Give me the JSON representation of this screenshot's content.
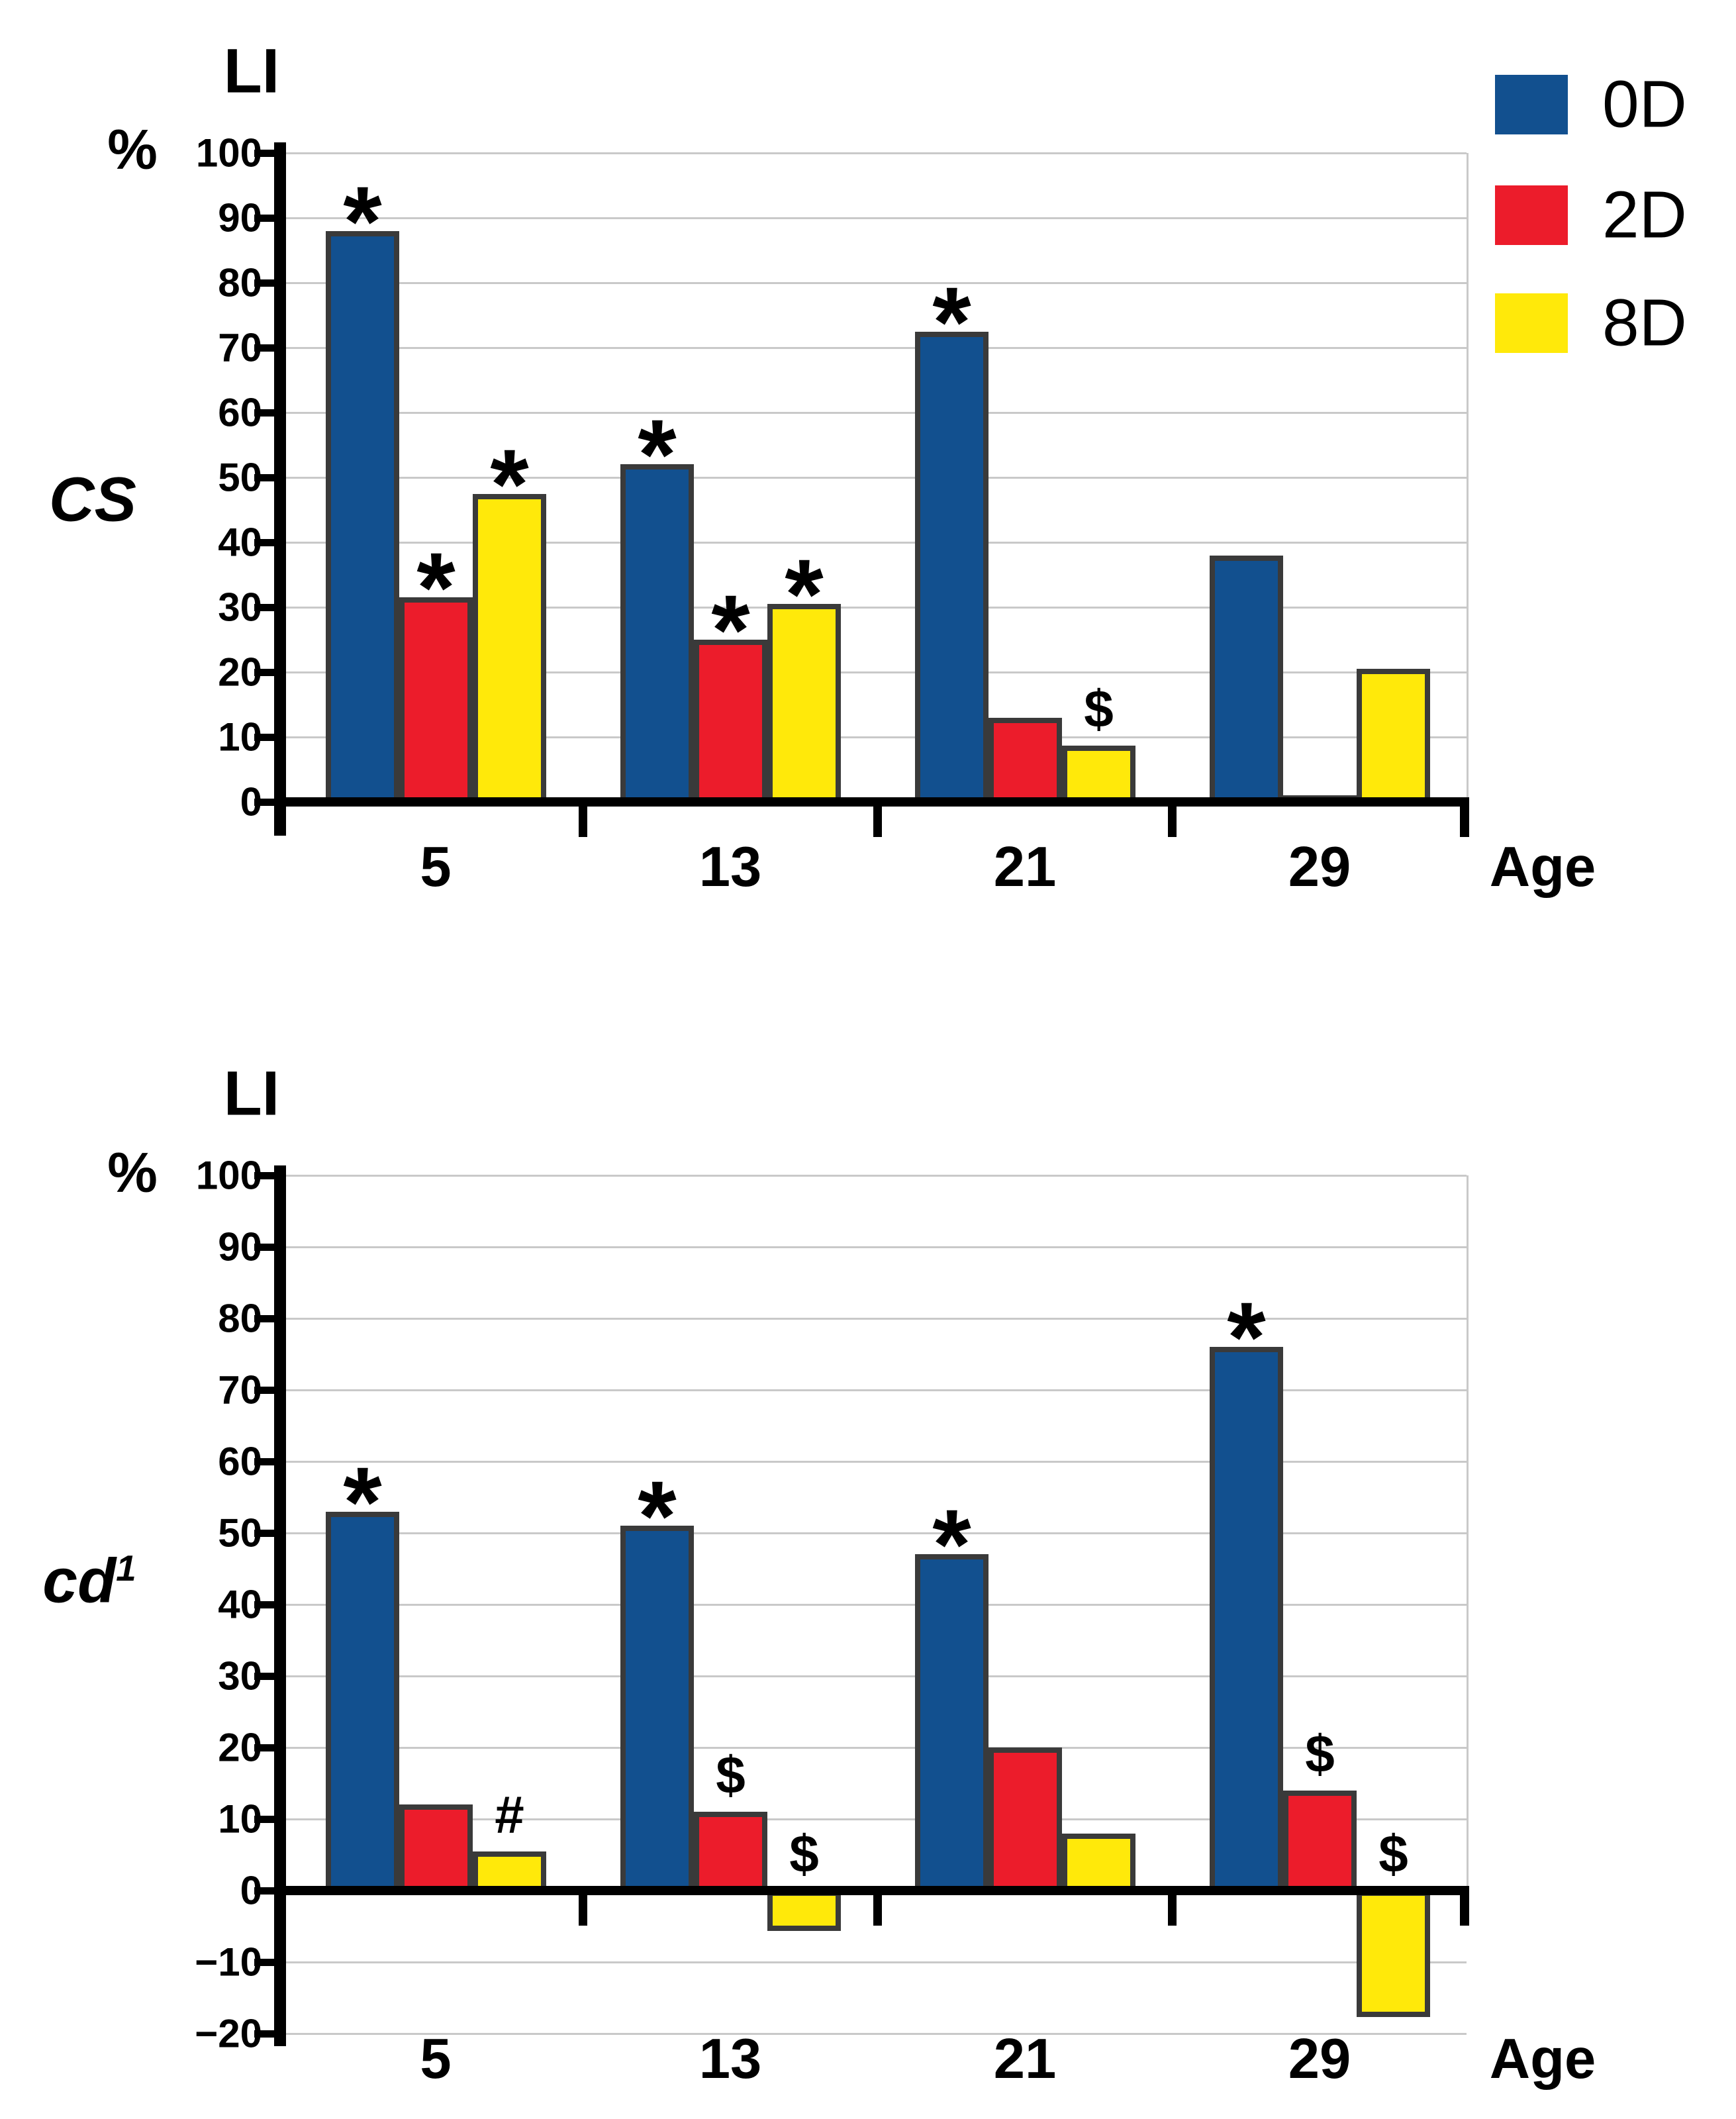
{
  "figure": {
    "background": "#ffffff",
    "outline_color": "#3a3a3a",
    "gridline_color": "#c9c9c9"
  },
  "legend": {
    "position": "top-right",
    "items": [
      {
        "label": "0D",
        "color": "#12508f"
      },
      {
        "label": "2D",
        "color": "#ec1c2b"
      },
      {
        "label": "8D",
        "color": "#ffe90a"
      }
    ]
  },
  "chart_data": [
    {
      "type": "bar",
      "panel_label": "CS",
      "axis_title": "LI",
      "unit_label": "%",
      "xlabel": "Age",
      "categories": [
        "5",
        "13",
        "21",
        "29"
      ],
      "ylim": [
        0,
        100
      ],
      "ytick_step": 10,
      "grid": true,
      "yticks": [
        {
          "v": 100,
          "label": "100"
        },
        {
          "v": 90,
          "label": "90"
        },
        {
          "v": 80,
          "label": "80"
        },
        {
          "v": 70,
          "label": "70"
        },
        {
          "v": 60,
          "label": "60"
        },
        {
          "v": 50,
          "label": "50"
        },
        {
          "v": 40,
          "label": "40"
        },
        {
          "v": 30,
          "label": "30"
        },
        {
          "v": 20,
          "label": "20"
        },
        {
          "v": 10,
          "label": "10"
        },
        {
          "v": 0,
          "label": "0"
        }
      ],
      "series": [
        {
          "name": "0D",
          "color": "#12508f",
          "values": [
            88,
            52,
            72.5,
            38
          ],
          "symbols": [
            "*",
            "*",
            "*",
            ""
          ]
        },
        {
          "name": "2D",
          "color": "#ec1c2b",
          "values": [
            31.5,
            25,
            13,
            0.5
          ],
          "symbols": [
            "*",
            "*",
            "",
            ""
          ]
        },
        {
          "name": "8D",
          "color": "#ffe90a",
          "values": [
            47.5,
            30.5,
            8.7,
            20.5
          ],
          "symbols": [
            "*",
            "*",
            "$",
            ""
          ]
        }
      ]
    },
    {
      "type": "bar",
      "panel_label": "cd",
      "panel_label_sup": "1",
      "axis_title": "LI",
      "unit_label": "%",
      "xlabel": "Age",
      "categories": [
        "5",
        "13",
        "21",
        "29"
      ],
      "ylim": [
        -20,
        100
      ],
      "ytick_step": 10,
      "grid": true,
      "yticks": [
        {
          "v": 100,
          "label": "100"
        },
        {
          "v": 90,
          "label": "90"
        },
        {
          "v": 80,
          "label": "80"
        },
        {
          "v": 70,
          "label": "70"
        },
        {
          "v": 60,
          "label": "60"
        },
        {
          "v": 50,
          "label": "50"
        },
        {
          "v": 40,
          "label": "40"
        },
        {
          "v": 30,
          "label": "30"
        },
        {
          "v": 20,
          "label": "20"
        },
        {
          "v": 10,
          "label": "10"
        },
        {
          "v": 0,
          "label": "0"
        },
        {
          "v": -10,
          "label": "−10"
        },
        {
          "v": -20,
          "label": "−20"
        }
      ],
      "series": [
        {
          "name": "0D",
          "color": "#12508f",
          "values": [
            53,
            51,
            47,
            76
          ],
          "symbols": [
            "*",
            "*",
            "*",
            "*"
          ]
        },
        {
          "name": "2D",
          "color": "#ec1c2b",
          "values": [
            12,
            11,
            20,
            14
          ],
          "symbols": [
            "",
            "$",
            "",
            "$"
          ]
        },
        {
          "name": "8D",
          "color": "#ffe90a",
          "values": [
            5.5,
            -5,
            8,
            -17
          ],
          "symbols": [
            "#",
            "$",
            "",
            "$"
          ]
        }
      ]
    }
  ]
}
